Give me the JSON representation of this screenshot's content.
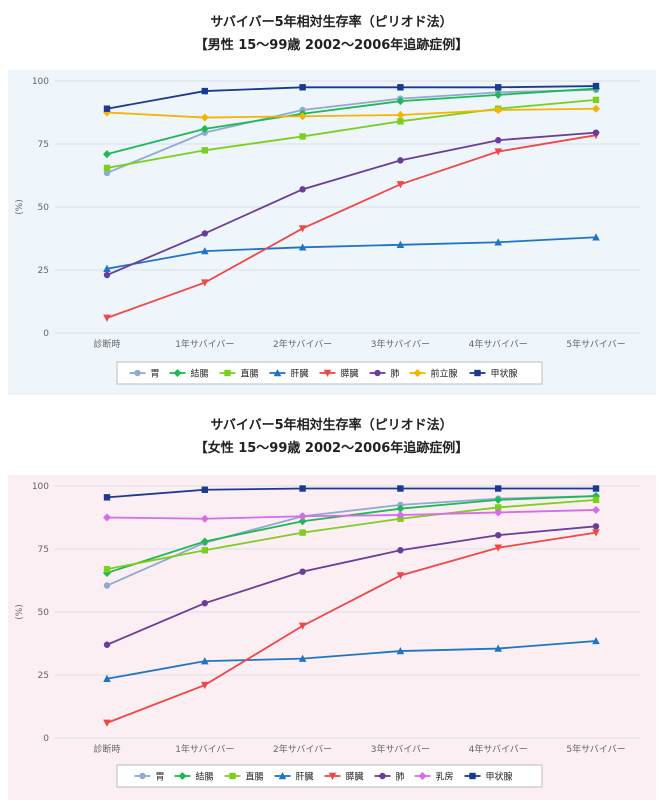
{
  "chart_data": [
    {
      "type": "line",
      "title": "サバイバー5年相対生存率（ピリオド法）",
      "subtitle": "【男性 15～99歳 2002～2006年追跡症例】",
      "xlabel": "",
      "ylabel": "(%)",
      "ylim": [
        0,
        100
      ],
      "yticks": [
        0,
        25,
        50,
        75,
        100
      ],
      "categories": [
        "診断時",
        "1年サバイバー",
        "2年サバイバー",
        "3年サバイバー",
        "4年サバイバー",
        "5年サバイバー"
      ],
      "legend_position": "bottom",
      "series": [
        {
          "name": "胃",
          "color": "#8fa9d4",
          "marker": "circle",
          "values": [
            63.5,
            79.5,
            88.5,
            93,
            95.5,
            96.5
          ]
        },
        {
          "name": "結腸",
          "color": "#1db954",
          "marker": "diamond",
          "values": [
            71,
            81,
            87,
            92,
            94.5,
            97
          ]
        },
        {
          "name": "直腸",
          "color": "#7ccf1f",
          "marker": "square",
          "values": [
            65.5,
            72.5,
            78,
            84,
            89,
            92.5
          ]
        },
        {
          "name": "肝臓",
          "color": "#1f75c4",
          "marker": "triangle-up",
          "values": [
            25.5,
            32.5,
            34,
            35,
            36,
            38
          ]
        },
        {
          "name": "膵臓",
          "color": "#f04747",
          "marker": "triangle-down",
          "values": [
            6,
            20,
            41.5,
            59,
            72,
            78.5
          ]
        },
        {
          "name": "肺",
          "color": "#6a3d9a",
          "marker": "circle",
          "values": [
            23,
            39.5,
            57,
            68.5,
            76.5,
            79.5
          ]
        },
        {
          "name": "前立腺",
          "color": "#f4b400",
          "marker": "diamond",
          "values": [
            87.5,
            85.5,
            86,
            86.5,
            88.5,
            89
          ]
        },
        {
          "name": "甲状腺",
          "color": "#1a3a8f",
          "marker": "square",
          "values": [
            89,
            96,
            97.5,
            97.5,
            97.5,
            98
          ]
        }
      ]
    },
    {
      "type": "line",
      "title": "サバイバー5年相対生存率（ピリオド法）",
      "subtitle": "【女性 15～99歳 2002～2006年追跡症例】",
      "xlabel": "",
      "ylabel": "(%)",
      "ylim": [
        0,
        100
      ],
      "yticks": [
        0,
        25,
        50,
        75,
        100
      ],
      "categories": [
        "診断時",
        "1年サバイバー",
        "2年サバイバー",
        "3年サバイバー",
        "4年サバイバー",
        "5年サバイバー"
      ],
      "legend_position": "bottom",
      "series": [
        {
          "name": "胃",
          "color": "#8fa9d4",
          "marker": "circle",
          "values": [
            60.5,
            77.5,
            88,
            92.5,
            95,
            96
          ]
        },
        {
          "name": "結腸",
          "color": "#1db954",
          "marker": "diamond",
          "values": [
            65.5,
            78,
            86,
            91,
            94.5,
            96
          ]
        },
        {
          "name": "直腸",
          "color": "#7ccf1f",
          "marker": "square",
          "values": [
            67,
            74.5,
            81.5,
            87,
            91.5,
            94.5
          ]
        },
        {
          "name": "肝臓",
          "color": "#1f75c4",
          "marker": "triangle-up",
          "values": [
            23.5,
            30.5,
            31.5,
            34.5,
            35.5,
            38.5
          ]
        },
        {
          "name": "膵臓",
          "color": "#f04747",
          "marker": "triangle-down",
          "values": [
            6,
            21,
            44.5,
            64.5,
            75.5,
            81.5
          ]
        },
        {
          "name": "肺",
          "color": "#6a3d9a",
          "marker": "circle",
          "values": [
            37,
            53.5,
            66,
            74.5,
            80.5,
            84
          ]
        },
        {
          "name": "乳房",
          "color": "#d86be8",
          "marker": "diamond",
          "values": [
            87.5,
            87,
            88,
            88.5,
            89.5,
            90.5
          ]
        },
        {
          "name": "甲状腺",
          "color": "#1a3a8f",
          "marker": "square",
          "values": [
            95.5,
            98.5,
            99,
            99,
            99,
            99
          ]
        }
      ]
    }
  ]
}
